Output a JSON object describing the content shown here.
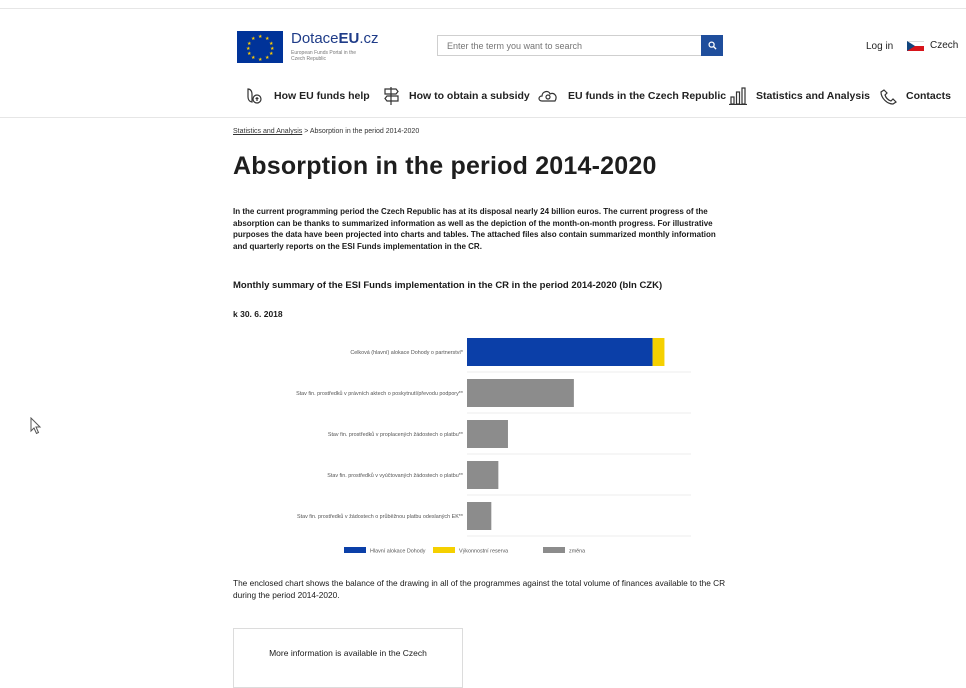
{
  "header": {
    "logo_title_pre": "Dotace",
    "logo_title_bold": "EU",
    "logo_title_post": ".cz",
    "logo_sub": "European Funds Portal in the Czech Republic",
    "search_placeholder": "Enter the term you want to search",
    "login_label": "Log in",
    "lang_label": "Czech"
  },
  "nav": {
    "items": [
      {
        "label": "How EU funds help",
        "icon": "hand-coin-icon"
      },
      {
        "label": "How to obtain a subsidy",
        "icon": "signpost-icon"
      },
      {
        "label": "EU funds in the Czech Republic",
        "icon": "cloud-eye-icon"
      },
      {
        "label": "Statistics and Analysis",
        "icon": "bar-chart-icon"
      },
      {
        "label": "Contacts",
        "icon": "phone-icon"
      }
    ]
  },
  "breadcrumb": {
    "parent": "Statistics and Analysis",
    "separator": " > ",
    "current": "Absorption in the period 2014-2020"
  },
  "page": {
    "title": "Absorption in the period 2014-2020",
    "intro": "In the current programming period the Czech Republic has at its disposal nearly 24 billion euros. The current progress of the absorption can be thanks to summarized information as well as the depiction of the month-on-month progress. For illustrative purposes the data have been projected into charts and tables. The attached files also contain summarized monthly information and quarterly reports on the ESI Funds implementation in the CR.",
    "subheading": "Monthly summary of the ESI Funds implementation in the CR in the period 2014-2020 (bln CZK)",
    "date": "k 30. 6. 2018",
    "footnote": "The enclosed chart shows the balance of the drawing in all of the programmes against the total volume of finances available to the CR during the period 2014-2020.",
    "more_info": "More information is available in the Czech"
  },
  "chart_data": {
    "type": "bar",
    "orientation": "horizontal",
    "stacked": true,
    "categories": [
      "Celková (hlavní) alokace Dohody o partnerství*",
      "Stav fin. prostředků v právních aktech o poskytnutí/převodu podpory**",
      "Stav fin. prostředků v proplacených žádostech o platbu**",
      "Stav fin. prostředků v vyúčtovaných žádostech o platbu**",
      "Stav fin. prostředků v žádostech o průběžnou platbu odeslaných EK**"
    ],
    "series": [
      {
        "name": "Hlavní alokace Dohody",
        "color": "#0b3fa8",
        "values": [
          580,
          0,
          0,
          0,
          0
        ]
      },
      {
        "name": "Výkonnostní reserva",
        "color": "#f5d000",
        "values": [
          37,
          0,
          0,
          0,
          0
        ]
      },
      {
        "name": "změna",
        "color": "#8c8c8c",
        "values": [
          0,
          334,
          128,
          98,
          76
        ]
      }
    ],
    "xlim": [
      0,
      700
    ],
    "grid": false,
    "legend": "bottom"
  }
}
